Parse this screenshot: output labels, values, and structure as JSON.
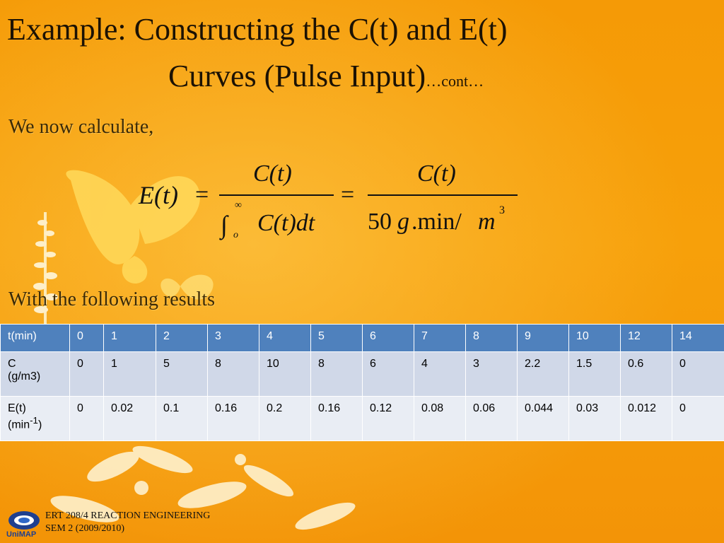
{
  "title": {
    "line1": "Example: Constructing the C(t) and E(t)",
    "line2": "Curves (Pulse Input)",
    "suffix": "…cont…"
  },
  "intro": "We now calculate,",
  "equation": {
    "lhs": "E(t)",
    "equals": "=",
    "numerator": "C(t)",
    "integral_lower": "o",
    "integral_upper": "∞",
    "integrand": "C(t)dt",
    "denominator_coef": "50",
    "denominator_unit_g": "g",
    "denominator_unit_min": ".min/",
    "denominator_unit_m": "m",
    "denominator_exp": "3"
  },
  "results_label": "With the following results",
  "table": {
    "headers": [
      "t(min)",
      "0",
      "1",
      "2",
      "3",
      "4",
      "5",
      "6",
      "7",
      "8",
      "9",
      "10",
      "12",
      "14"
    ],
    "rows": [
      {
        "label_line1": "C",
        "label_line2": "(g/m3)",
        "cells": [
          "0",
          "1",
          "5",
          "8",
          "10",
          "8",
          "6",
          "4",
          "3",
          "2.2",
          "1.5",
          "0.6",
          "0"
        ]
      },
      {
        "label_line1": "E(t)",
        "label_line2_prefix": "(min",
        "label_line2_sup": "-1",
        "label_line2_suffix": ")",
        "cells": [
          "0",
          "0.02",
          "0.1",
          "0.16",
          "0.2",
          "0.16",
          "0.12",
          "0.08",
          "0.06",
          "0.044",
          "0.03",
          "0.012",
          "0"
        ]
      }
    ]
  },
  "footer": {
    "line1": "ERT 208/4 REACTION ENGINEERING",
    "line2": "SEM 2 (2009/2010)",
    "logo_text": "UniMAP"
  },
  "colors": {
    "background": "#f7a00a",
    "header_blue": "#4f81bd",
    "row1": "#d0d8e8",
    "row2": "#e9edf4"
  }
}
